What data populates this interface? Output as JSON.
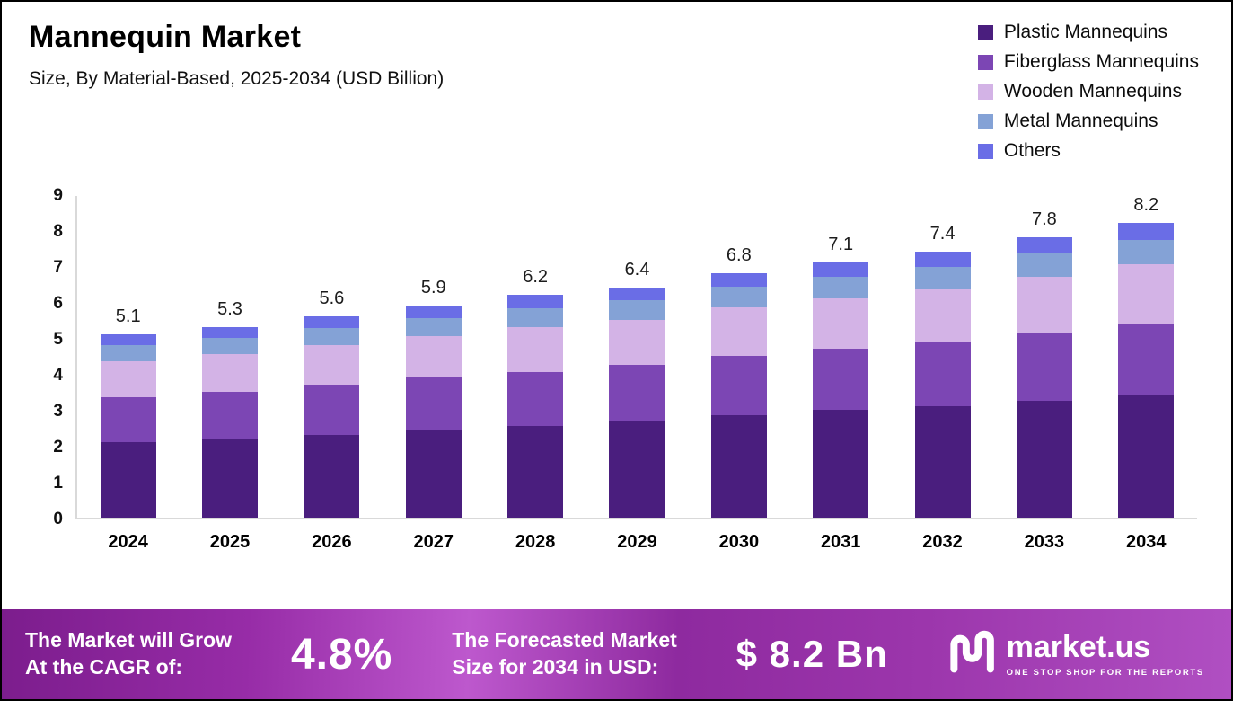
{
  "header": {
    "title": "Mannequin Market",
    "subtitle": "Size, By Material-Based, 2025-2034 (USD Billion)"
  },
  "chart_data": {
    "type": "bar",
    "stacked": true,
    "title": "Mannequin Market Size, By Material-Based, 2025-2034 (USD Billion)",
    "xlabel": "",
    "ylabel": "",
    "ylim": [
      0,
      9
    ],
    "yticks": [
      0,
      1,
      2,
      3,
      4,
      5,
      6,
      7,
      8,
      9
    ],
    "grid": false,
    "legend_position": "top-right",
    "categories": [
      "2024",
      "2025",
      "2026",
      "2027",
      "2028",
      "2029",
      "2030",
      "2031",
      "2032",
      "2033",
      "2034"
    ],
    "totals": [
      5.1,
      5.3,
      5.6,
      5.9,
      6.2,
      6.4,
      6.8,
      7.1,
      7.4,
      7.8,
      8.2
    ],
    "series": [
      {
        "name": "Plastic Mannequins",
        "color": "#4a1e7e",
        "values": [
          2.1,
          2.2,
          2.3,
          2.45,
          2.55,
          2.7,
          2.85,
          3.0,
          3.1,
          3.25,
          3.4
        ]
      },
      {
        "name": "Fiberglass Mannequins",
        "color": "#7c46b4",
        "values": [
          1.25,
          1.3,
          1.4,
          1.45,
          1.5,
          1.55,
          1.65,
          1.7,
          1.8,
          1.9,
          2.0
        ]
      },
      {
        "name": "Wooden Mannequins",
        "color": "#d3b3e6",
        "values": [
          1.0,
          1.05,
          1.1,
          1.15,
          1.25,
          1.25,
          1.35,
          1.4,
          1.45,
          1.55,
          1.65
        ]
      },
      {
        "name": "Metal Mannequins",
        "color": "#84a2d6",
        "values": [
          0.45,
          0.45,
          0.48,
          0.5,
          0.53,
          0.55,
          0.58,
          0.6,
          0.63,
          0.66,
          0.68
        ]
      },
      {
        "name": "Others",
        "color": "#6a6de6",
        "values": [
          0.3,
          0.3,
          0.32,
          0.35,
          0.37,
          0.35,
          0.37,
          0.4,
          0.42,
          0.44,
          0.47
        ]
      }
    ]
  },
  "footer": {
    "growth_label": "The Market will Grow\nAt the CAGR of:",
    "cagr_value": "4.8%",
    "forecast_label": "The Forecasted Market\nSize for 2034 in USD:",
    "forecast_value": "$ 8.2 Bn",
    "brand": "market.us",
    "tagline": "ONE STOP SHOP FOR THE REPORTS"
  },
  "colors": {
    "banner_left": "#7c1d8d",
    "banner_highlight": "#bd58cd",
    "banner_right": "#b04fc2",
    "axis_line": "#d9d9d9"
  }
}
